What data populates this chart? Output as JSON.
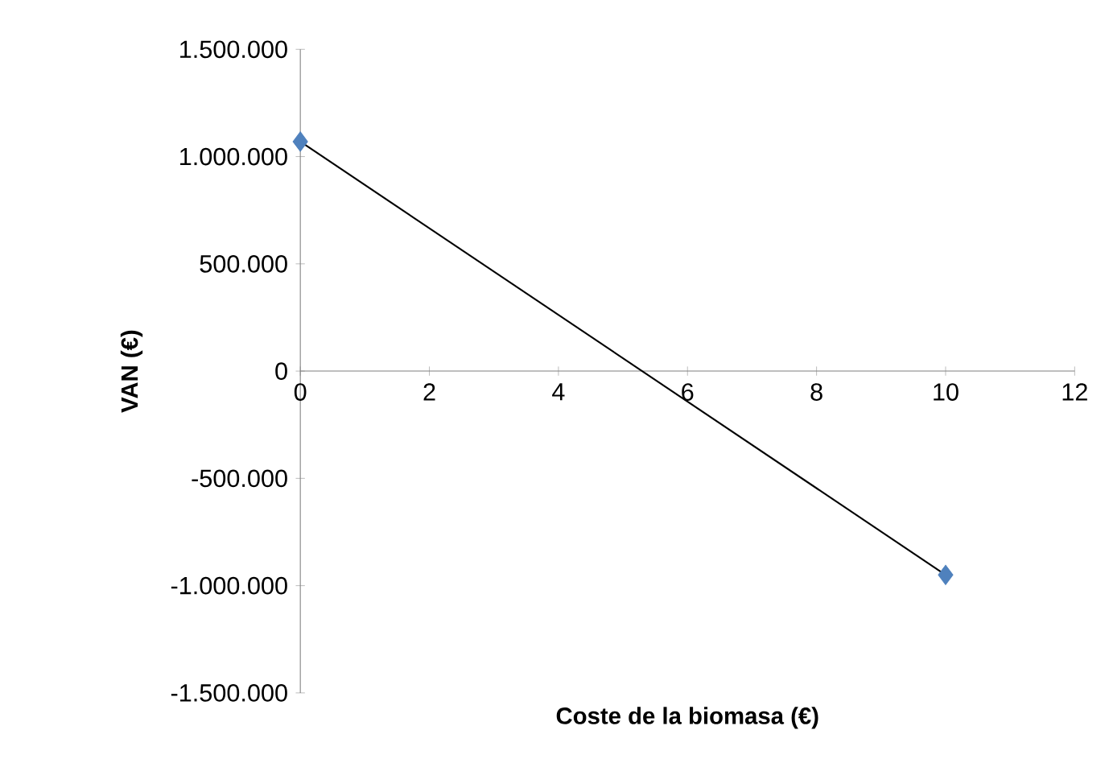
{
  "chart_data": {
    "type": "scatter",
    "xlabel": "Coste de la biomasa (€)",
    "ylabel": "VAN (€)",
    "xlim": [
      0,
      12
    ],
    "xticks": [
      0,
      2,
      4,
      6,
      8,
      10,
      12
    ],
    "ylim": [
      -1500000,
      1500000
    ],
    "yticks": [
      {
        "value": -1500000,
        "label": "-1.500.000"
      },
      {
        "value": -1000000,
        "label": "-1.000.000"
      },
      {
        "value": -500000,
        "label": "-500.000"
      },
      {
        "value": 0,
        "label": "0"
      },
      {
        "value": 500000,
        "label": "500.000"
      },
      {
        "value": 1000000,
        "label": "1.000.000"
      },
      {
        "value": 1500000,
        "label": "1.500.000"
      }
    ],
    "grid": false,
    "x": [
      0,
      10
    ],
    "series": [
      {
        "marker": "diamond",
        "color": "#4f81bd",
        "values": [
          1070000,
          -950000
        ]
      },
      {
        "type": "line",
        "marker": "none",
        "line_style": "solid",
        "color": "#000000",
        "values": [
          1070000,
          -950000
        ]
      }
    ]
  }
}
